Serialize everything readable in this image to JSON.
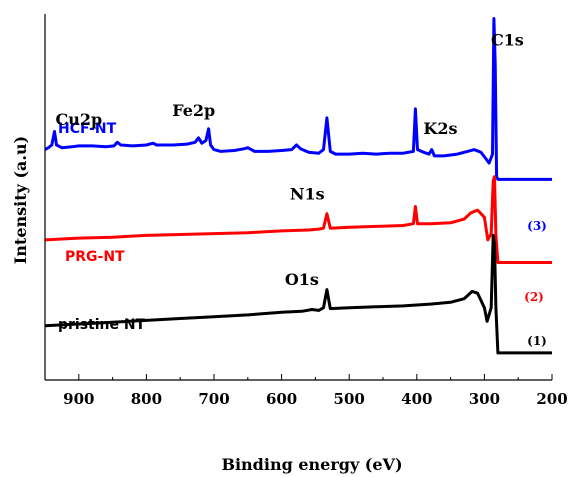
{
  "chart_data": {
    "type": "line",
    "xlabel": "Binding energy (eV)",
    "ylabel": "Intensity (a.u)",
    "xlim": [
      950,
      200
    ],
    "x_reversed": true,
    "xticks": [
      900,
      800,
      700,
      600,
      500,
      400,
      300,
      200
    ],
    "y_ticks_shown": false,
    "grid": false,
    "series": [
      {
        "name": "HCF-NT",
        "index_label": "(3)",
        "color": "#0000ff",
        "points": [
          [
            950,
            1.95
          ],
          [
            945,
            1.97
          ],
          [
            940,
            2.0
          ],
          [
            936,
            2.15
          ],
          [
            933,
            2.0
          ],
          [
            925,
            1.97
          ],
          [
            910,
            1.98
          ],
          [
            900,
            1.99
          ],
          [
            880,
            1.99
          ],
          [
            860,
            1.98
          ],
          [
            848,
            1.99
          ],
          [
            843,
            2.03
          ],
          [
            838,
            2.0
          ],
          [
            820,
            1.99
          ],
          [
            800,
            2.0
          ],
          [
            790,
            2.02
          ],
          [
            785,
            2.0
          ],
          [
            760,
            2.0
          ],
          [
            740,
            2.01
          ],
          [
            728,
            2.03
          ],
          [
            723,
            2.08
          ],
          [
            718,
            2.02
          ],
          [
            712,
            2.05
          ],
          [
            708,
            2.18
          ],
          [
            705,
            2.0
          ],
          [
            700,
            1.95
          ],
          [
            690,
            1.93
          ],
          [
            670,
            1.94
          ],
          [
            655,
            1.96
          ],
          [
            650,
            1.97
          ],
          [
            640,
            1.93
          ],
          [
            620,
            1.93
          ],
          [
            600,
            1.94
          ],
          [
            585,
            1.95
          ],
          [
            578,
            2.0
          ],
          [
            572,
            1.96
          ],
          [
            560,
            1.92
          ],
          [
            545,
            1.91
          ],
          [
            538,
            1.95
          ],
          [
            533,
            2.3
          ],
          [
            528,
            1.93
          ],
          [
            520,
            1.9
          ],
          [
            500,
            1.9
          ],
          [
            480,
            1.91
          ],
          [
            460,
            1.9
          ],
          [
            440,
            1.91
          ],
          [
            420,
            1.91
          ],
          [
            405,
            1.93
          ],
          [
            402,
            2.4
          ],
          [
            399,
            1.95
          ],
          [
            390,
            1.92
          ],
          [
            382,
            1.9
          ],
          [
            378,
            1.95
          ],
          [
            374,
            1.88
          ],
          [
            360,
            1.88
          ],
          [
            340,
            1.9
          ],
          [
            325,
            1.93
          ],
          [
            315,
            1.95
          ],
          [
            305,
            1.92
          ],
          [
            298,
            1.85
          ],
          [
            293,
            1.8
          ],
          [
            288,
            1.9
          ],
          [
            286,
            3.4
          ],
          [
            284,
            2.9
          ],
          [
            282,
            1.65
          ],
          [
            280,
            1.62
          ],
          [
            260,
            1.62
          ],
          [
            240,
            1.62
          ],
          [
            220,
            1.62
          ],
          [
            200,
            1.62
          ]
        ]
      },
      {
        "name": "PRG-NT",
        "index_label": "(2)",
        "color": "#ff0000",
        "points": [
          [
            950,
            0.95
          ],
          [
            900,
            0.97
          ],
          [
            850,
            0.98
          ],
          [
            800,
            1.0
          ],
          [
            750,
            1.01
          ],
          [
            700,
            1.02
          ],
          [
            650,
            1.03
          ],
          [
            600,
            1.05
          ],
          [
            560,
            1.06
          ],
          [
            545,
            1.07
          ],
          [
            538,
            1.08
          ],
          [
            533,
            1.24
          ],
          [
            528,
            1.08
          ],
          [
            500,
            1.09
          ],
          [
            460,
            1.1
          ],
          [
            420,
            1.11
          ],
          [
            405,
            1.13
          ],
          [
            402,
            1.32
          ],
          [
            399,
            1.13
          ],
          [
            380,
            1.13
          ],
          [
            350,
            1.14
          ],
          [
            330,
            1.18
          ],
          [
            320,
            1.25
          ],
          [
            310,
            1.28
          ],
          [
            300,
            1.2
          ],
          [
            295,
            0.95
          ],
          [
            290,
            1.02
          ],
          [
            287,
            1.6
          ],
          [
            285,
            1.65
          ],
          [
            283,
            1.0
          ],
          [
            280,
            0.7
          ],
          [
            260,
            0.7
          ],
          [
            240,
            0.7
          ],
          [
            220,
            0.7
          ],
          [
            200,
            0.7
          ]
        ]
      },
      {
        "name": "pristine NT",
        "index_label": "(1)",
        "color": "#000000",
        "points": [
          [
            950,
            0.0
          ],
          [
            900,
            0.02
          ],
          [
            850,
            0.04
          ],
          [
            800,
            0.06
          ],
          [
            750,
            0.08
          ],
          [
            700,
            0.1
          ],
          [
            650,
            0.12
          ],
          [
            600,
            0.15
          ],
          [
            570,
            0.16
          ],
          [
            555,
            0.18
          ],
          [
            545,
            0.17
          ],
          [
            538,
            0.2
          ],
          [
            533,
            0.4
          ],
          [
            528,
            0.19
          ],
          [
            500,
            0.2
          ],
          [
            460,
            0.21
          ],
          [
            420,
            0.22
          ],
          [
            380,
            0.24
          ],
          [
            350,
            0.26
          ],
          [
            330,
            0.3
          ],
          [
            318,
            0.38
          ],
          [
            310,
            0.36
          ],
          [
            300,
            0.2
          ],
          [
            296,
            0.05
          ],
          [
            290,
            0.2
          ],
          [
            287,
            1.0
          ],
          [
            285,
            0.9
          ],
          [
            283,
            0.2
          ],
          [
            280,
            -0.3
          ],
          [
            260,
            -0.3
          ],
          [
            240,
            -0.3
          ],
          [
            220,
            -0.3
          ],
          [
            200,
            -0.3
          ]
        ]
      }
    ],
    "annotations": [
      {
        "text": "C1s",
        "x": 266,
        "y": 3.1
      },
      {
        "text": "Cu2p",
        "x": 900,
        "y": 2.22
      },
      {
        "text": "Fe2p",
        "x": 730,
        "y": 2.32
      },
      {
        "text": "K2s",
        "x": 365,
        "y": 2.12
      },
      {
        "text": "N1s",
        "x": 562,
        "y": 1.4
      },
      {
        "text": "O1s",
        "x": 570,
        "y": 0.45
      }
    ]
  }
}
